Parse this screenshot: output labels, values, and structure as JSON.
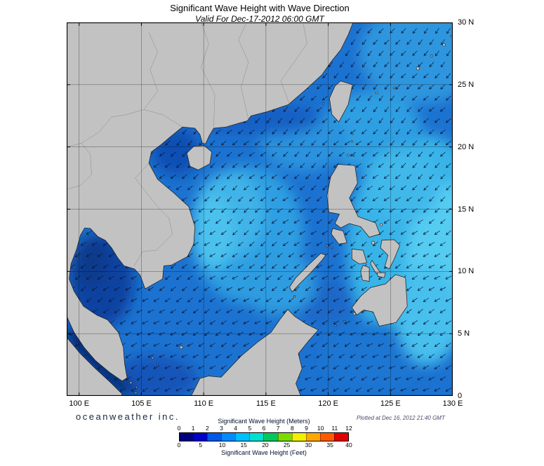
{
  "header": {
    "title": "Significant Wave Height with Wave Direction",
    "subtitle": "Valid For Dec-17-2012 06:00 GMT"
  },
  "map": {
    "lat_ticks": [
      {
        "label": "30 N",
        "value": 30
      },
      {
        "label": "25 N",
        "value": 25
      },
      {
        "label": "20 N",
        "value": 20
      },
      {
        "label": "15 N",
        "value": 15
      },
      {
        "label": "10 N",
        "value": 10
      },
      {
        "label": "5 N",
        "value": 5
      },
      {
        "label": "0",
        "value": 0
      }
    ],
    "lon_ticks": [
      {
        "label": "100 E",
        "value": 100
      },
      {
        "label": "105 E",
        "value": 105
      },
      {
        "label": "110 E",
        "value": 110
      },
      {
        "label": "115 E",
        "value": 115
      },
      {
        "label": "120 E",
        "value": 120
      },
      {
        "label": "125 E",
        "value": 125
      },
      {
        "label": "130 E",
        "value": 130
      }
    ],
    "colors": {
      "land": "#C2C2C2",
      "coastline": "#1a1a1a",
      "ocean_base": "#1C72D0",
      "arrow": "#0A1A3C",
      "grid": "#000000",
      "border": "#8A8A8A"
    }
  },
  "footer": {
    "branding": "oceanweather inc.",
    "plotted": "Plotted at Dec 16, 2012 21:40 GMT"
  },
  "legend": {
    "meters_label": "Significant Wave Height (Meters)",
    "feet_label": "Significant Wave Height (Feet)",
    "meters_ticks": [
      0,
      1,
      2,
      3,
      4,
      5,
      6,
      7,
      8,
      9,
      10,
      11,
      12
    ],
    "feet_ticks": [
      0,
      5,
      10,
      15,
      20,
      25,
      30,
      35,
      40
    ],
    "colors": [
      "#00007F",
      "#0000C8",
      "#0057E8",
      "#008CFF",
      "#00BFFF",
      "#00E0D0",
      "#00C860",
      "#7CDC00",
      "#F0F000",
      "#FFA800",
      "#FF5A00",
      "#E00000"
    ]
  }
}
